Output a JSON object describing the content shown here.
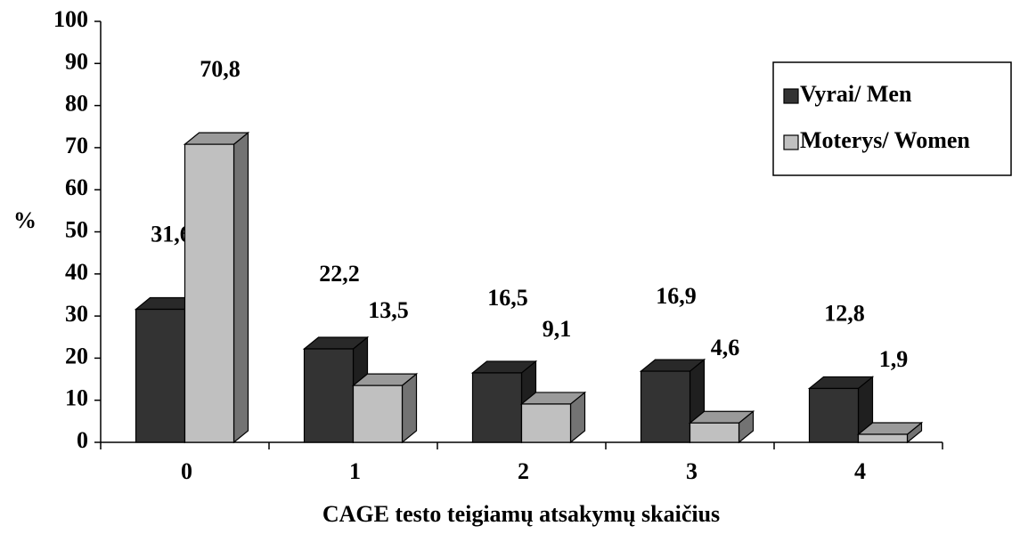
{
  "chart_data": {
    "type": "bar3d",
    "ylabel": "%",
    "xlabel": "CAGE testo teigiamų atsakymų skaičius",
    "categories": [
      "0",
      "1",
      "2",
      "3",
      "4"
    ],
    "series": [
      {
        "name": "Vyrai/ Men",
        "color": "#333333",
        "values": [
          31.6,
          22.2,
          16.5,
          16.9,
          12.8
        ],
        "value_labels": [
          "31,6",
          "22,2",
          "16,5",
          "16,9",
          "12,8"
        ]
      },
      {
        "name": "Moterys/ Women",
        "color": "#c0c0c0",
        "values": [
          70.8,
          13.5,
          9.1,
          4.6,
          1.9
        ],
        "value_labels": [
          "70,8",
          "13,5",
          "9,1",
          "4,6",
          "1,9"
        ]
      }
    ],
    "ylim": [
      0,
      100
    ],
    "yticks": [
      0,
      10,
      20,
      30,
      40,
      50,
      60,
      70,
      80,
      90,
      100
    ],
    "legend": "upper right",
    "grid": false
  }
}
